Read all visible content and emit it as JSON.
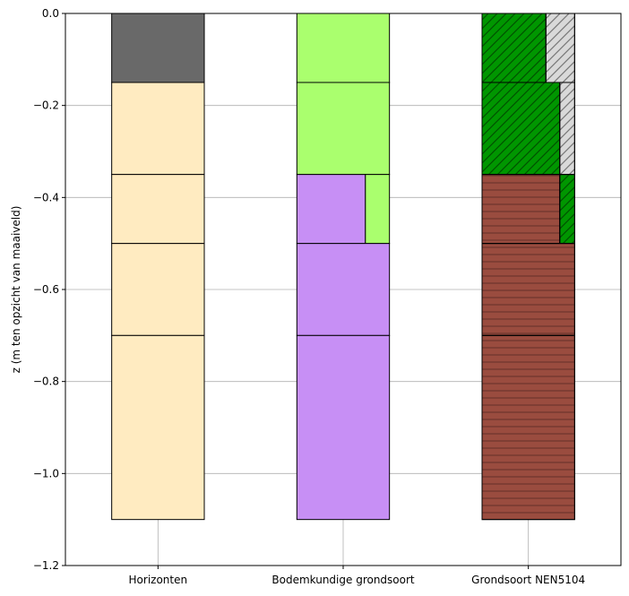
{
  "chart_data": {
    "type": "bar",
    "ylabel": "z (m ten opzicht van maaiveld)",
    "xlabel": "",
    "ylim": [
      -1.2,
      0.0
    ],
    "yticks": [
      0.0,
      -0.2,
      -0.4,
      -0.6,
      -0.8,
      -1.0,
      -1.2
    ],
    "ytick_labels": [
      "0.0",
      "−0.2",
      "−0.4",
      "−0.6",
      "−0.8",
      "−1.0",
      "−1.2"
    ],
    "grid": true,
    "categories": [
      "Horizonten",
      "Bodemkundige grondsoort",
      "Grondsoort NEN5104"
    ],
    "columns": [
      {
        "category": "Horizonten",
        "layers": [
          {
            "top": 0.0,
            "bottom": -0.15,
            "parts": [
              {
                "fraction": 1.0,
                "color": "#696969",
                "pattern": "none"
              }
            ]
          },
          {
            "top": -0.15,
            "bottom": -0.35,
            "parts": [
              {
                "fraction": 1.0,
                "color": "#FFEBC1",
                "pattern": "none"
              }
            ]
          },
          {
            "top": -0.35,
            "bottom": -0.5,
            "parts": [
              {
                "fraction": 1.0,
                "color": "#FFEBC1",
                "pattern": "none"
              }
            ]
          },
          {
            "top": -0.5,
            "bottom": -0.7,
            "parts": [
              {
                "fraction": 1.0,
                "color": "#FFEBC1",
                "pattern": "none"
              }
            ]
          },
          {
            "top": -0.7,
            "bottom": -1.1,
            "parts": [
              {
                "fraction": 1.0,
                "color": "#FFEBC1",
                "pattern": "none"
              }
            ]
          }
        ]
      },
      {
        "category": "Bodemkundige grondsoort",
        "layers": [
          {
            "top": 0.0,
            "bottom": -0.15,
            "parts": [
              {
                "fraction": 1.0,
                "color": "#AAFF6E",
                "pattern": "none"
              }
            ]
          },
          {
            "top": -0.15,
            "bottom": -0.35,
            "parts": [
              {
                "fraction": 1.0,
                "color": "#AAFF6E",
                "pattern": "none"
              }
            ]
          },
          {
            "top": -0.35,
            "bottom": -0.5,
            "parts": [
              {
                "fraction": 0.74,
                "color": "#C78FF5",
                "pattern": "none"
              },
              {
                "fraction": 0.26,
                "color": "#AAFF6E",
                "pattern": "none"
              }
            ]
          },
          {
            "top": -0.5,
            "bottom": -0.7,
            "parts": [
              {
                "fraction": 1.0,
                "color": "#C78FF5",
                "pattern": "none"
              }
            ]
          },
          {
            "top": -0.7,
            "bottom": -1.1,
            "parts": [
              {
                "fraction": 1.0,
                "color": "#C78FF5",
                "pattern": "none"
              }
            ]
          }
        ]
      },
      {
        "category": "Grondsoort NEN5104",
        "layers": [
          {
            "top": 0.0,
            "bottom": -0.15,
            "parts": [
              {
                "fraction": 0.69,
                "color": "#009600",
                "pattern": "diagonal"
              },
              {
                "fraction": 0.31,
                "color": "#D9D9D9",
                "pattern": "diagonal"
              }
            ]
          },
          {
            "top": -0.15,
            "bottom": -0.35,
            "parts": [
              {
                "fraction": 0.84,
                "color": "#009600",
                "pattern": "diagonal"
              },
              {
                "fraction": 0.16,
                "color": "#D9D9D9",
                "pattern": "diagonal"
              }
            ]
          },
          {
            "top": -0.35,
            "bottom": -0.5,
            "parts": [
              {
                "fraction": 0.84,
                "color": "#9A4C3F",
                "pattern": "horizontal"
              },
              {
                "fraction": 0.16,
                "color": "#009600",
                "pattern": "diagonal"
              }
            ]
          },
          {
            "top": -0.5,
            "bottom": -0.7,
            "parts": [
              {
                "fraction": 1.0,
                "color": "#9A4C3F",
                "pattern": "horizontal"
              }
            ]
          },
          {
            "top": -0.7,
            "bottom": -1.1,
            "parts": [
              {
                "fraction": 1.0,
                "color": "#9A4C3F",
                "pattern": "horizontal"
              }
            ]
          }
        ]
      }
    ]
  }
}
